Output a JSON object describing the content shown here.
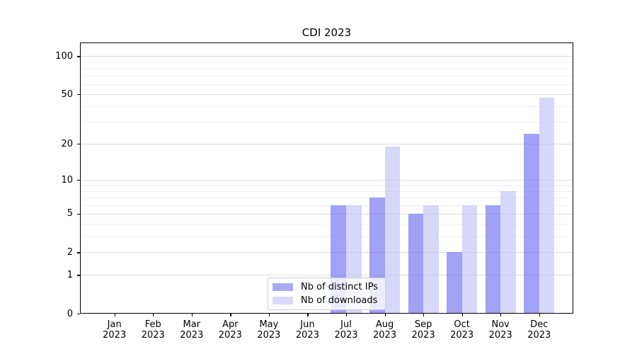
{
  "title": "CDI 2023",
  "colors": {
    "bar_ips_fill": "rgba(104,104,240,0.62)",
    "bar_downloads_fill": "rgba(190,190,246,0.62)",
    "legend_swatch_ips": "#a9a9f3",
    "legend_swatch_downloads": "#dadaf8",
    "grid_major": "#dcdcdc",
    "grid_minor": "#f1f1f1",
    "axis": "#000000",
    "legend_border": "#cccccc"
  },
  "y_axis": {
    "tick_labels": [
      "0",
      "1",
      "2",
      "5",
      "10",
      "20",
      "50",
      "100"
    ],
    "tick_values": [
      0,
      1,
      2,
      5,
      10,
      20,
      50,
      100
    ],
    "minor_tick_values": [
      3,
      4,
      6,
      7,
      8,
      9,
      30,
      40,
      60,
      70,
      80,
      90
    ]
  },
  "x_axis": {
    "tick_labels_line1": [
      "Jan",
      "Feb",
      "Mar",
      "Apr",
      "May",
      "Jun",
      "Jul",
      "Aug",
      "Sep",
      "Oct",
      "Nov",
      "Dec"
    ],
    "tick_labels_line2": [
      "2023",
      "2023",
      "2023",
      "2023",
      "2023",
      "2023",
      "2023",
      "2023",
      "2023",
      "2023",
      "2023",
      "2023"
    ]
  },
  "legend": {
    "entries": [
      {
        "label": "Nb of distinct IPs",
        "series": "ips"
      },
      {
        "label": "Nb of downloads",
        "series": "downloads"
      }
    ]
  },
  "chart_data": {
    "type": "bar",
    "title": "CDI 2023",
    "categories": [
      "Jan 2023",
      "Feb 2023",
      "Mar 2023",
      "Apr 2023",
      "May 2023",
      "Jun 2023",
      "Jul 2023",
      "Aug 2023",
      "Sep 2023",
      "Oct 2023",
      "Nov 2023",
      "Dec 2023"
    ],
    "series": [
      {
        "name": "Nb of distinct IPs",
        "values": [
          0,
          0,
          0,
          0,
          0,
          0,
          6,
          7,
          5,
          2,
          6,
          24
        ]
      },
      {
        "name": "Nb of downloads",
        "values": [
          0,
          0,
          0,
          0,
          0,
          0,
          6,
          19,
          6,
          6,
          8,
          47
        ]
      }
    ],
    "xlabel": "",
    "ylabel": "",
    "y_scale": "log1p",
    "y_ticks": [
      0,
      1,
      2,
      5,
      10,
      20,
      50,
      100
    ],
    "ylim": [
      0,
      110
    ],
    "grid": "on",
    "legend_position": "lower center"
  }
}
